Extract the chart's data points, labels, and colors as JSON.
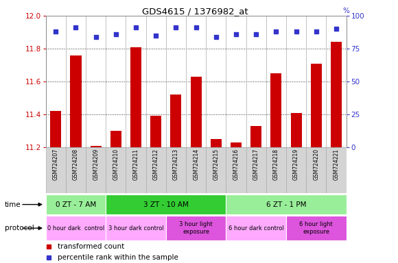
{
  "title": "GDS4615 / 1376982_at",
  "samples": [
    "GSM724207",
    "GSM724208",
    "GSM724209",
    "GSM724210",
    "GSM724211",
    "GSM724212",
    "GSM724213",
    "GSM724214",
    "GSM724215",
    "GSM724216",
    "GSM724217",
    "GSM724218",
    "GSM724219",
    "GSM724220",
    "GSM724221"
  ],
  "transformed_count": [
    11.42,
    11.76,
    11.21,
    11.3,
    11.81,
    11.39,
    11.52,
    11.63,
    11.25,
    11.23,
    11.33,
    11.65,
    11.41,
    11.71,
    11.84
  ],
  "percentile_rank": [
    88,
    91,
    84,
    86,
    91,
    85,
    91,
    91,
    84,
    86,
    86,
    88,
    88,
    88,
    90
  ],
  "ylim_left": [
    11.2,
    12.0
  ],
  "ylim_right": [
    0,
    100
  ],
  "yticks_left": [
    11.2,
    11.4,
    11.6,
    11.8,
    12.0
  ],
  "yticks_right": [
    0,
    25,
    50,
    75,
    100
  ],
  "bar_color": "#cc0000",
  "dot_color": "#3333cc",
  "bg_color": "#ffffff",
  "time_groups": [
    {
      "label": "0 ZT - 7 AM",
      "start": 0,
      "end": 3,
      "color": "#99ee99"
    },
    {
      "label": "3 ZT - 10 AM",
      "start": 3,
      "end": 9,
      "color": "#33cc33"
    },
    {
      "label": "6 ZT - 1 PM",
      "start": 9,
      "end": 15,
      "color": "#99ee99"
    }
  ],
  "protocol_groups": [
    {
      "label": "0 hour dark  control",
      "start": 0,
      "end": 3,
      "color": "#ffaaff"
    },
    {
      "label": "3 hour dark control",
      "start": 3,
      "end": 6,
      "color": "#ffaaff"
    },
    {
      "label": "3 hour light\nexposure",
      "start": 6,
      "end": 9,
      "color": "#dd55dd"
    },
    {
      "label": "6 hour dark control",
      "start": 9,
      "end": 12,
      "color": "#ffaaff"
    },
    {
      "label": "6 hour light\nexposure",
      "start": 12,
      "end": 15,
      "color": "#dd55dd"
    }
  ]
}
